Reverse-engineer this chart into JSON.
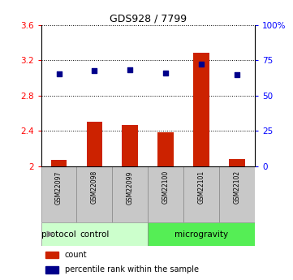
{
  "title": "GDS928 / 7799",
  "samples": [
    "GSM22097",
    "GSM22098",
    "GSM22099",
    "GSM22100",
    "GSM22101",
    "GSM22102"
  ],
  "bar_values": [
    2.07,
    2.5,
    2.47,
    2.38,
    3.29,
    2.08
  ],
  "dot_values": [
    3.05,
    3.08,
    3.09,
    3.06,
    3.16,
    3.04
  ],
  "left_ylim": [
    2.0,
    3.6
  ],
  "left_yticks": [
    2.0,
    2.4,
    2.8,
    3.2,
    3.6
  ],
  "left_yticklabels": [
    "2",
    "2.4",
    "2.8",
    "3.2",
    "3.6"
  ],
  "right_ylim": [
    0,
    100
  ],
  "right_yticks": [
    0,
    25,
    50,
    75,
    100
  ],
  "right_yticklabels": [
    "0",
    "25",
    "50",
    "75",
    "100%"
  ],
  "bar_color": "#cc2200",
  "dot_color": "#00008b",
  "groups": [
    {
      "label": "control",
      "start": 0,
      "end": 3,
      "color": "#ccffcc"
    },
    {
      "label": "microgravity",
      "start": 3,
      "end": 6,
      "color": "#55ee55"
    }
  ],
  "protocol_label": "protocol",
  "legend_items": [
    {
      "color": "#cc2200",
      "label": "count"
    },
    {
      "color": "#00008b",
      "label": "percentile rank within the sample"
    }
  ],
  "background_color": "#ffffff",
  "tick_label_box_color": "#c8c8c8"
}
